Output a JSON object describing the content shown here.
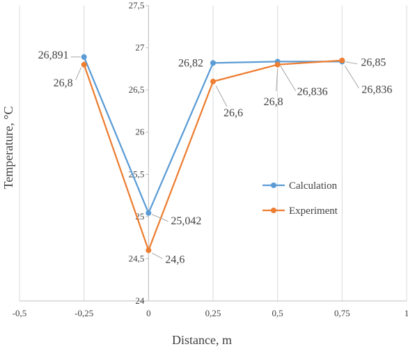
{
  "chart_data": {
    "type": "line",
    "xlabel": "Distance, m",
    "ylabel": "Temperature, °C",
    "xlim": [
      -0.5,
      1
    ],
    "ylim": [
      24,
      27.5
    ],
    "grid": "vertical",
    "legend_placement": "center-right",
    "x_ticks": [
      "-0,5",
      "-0,25",
      "0",
      "0,25",
      "0,5",
      "0,75",
      "1"
    ],
    "y_ticks": [
      "24",
      "24,5",
      "25",
      "25,5",
      "26",
      "26,5",
      "27",
      "27,5"
    ],
    "series": [
      {
        "name": "Calculation",
        "color": "#5B9BD5",
        "x": [
          -0.25,
          0,
          0.25,
          0.5,
          0.75
        ],
        "y": [
          26.891,
          25.042,
          26.82,
          26.836,
          26.836
        ],
        "labels": [
          "26,891",
          "25,042",
          "26,82",
          "26,836",
          "26,836"
        ]
      },
      {
        "name": "Experiment",
        "color": "#ED7D31",
        "x": [
          -0.25,
          0,
          0.25,
          0.5,
          0.75
        ],
        "y": [
          26.8,
          24.6,
          26.6,
          26.8,
          26.85
        ],
        "labels": [
          "26,8",
          "24,6",
          "26,6",
          "26,8",
          "26,85"
        ]
      }
    ]
  }
}
